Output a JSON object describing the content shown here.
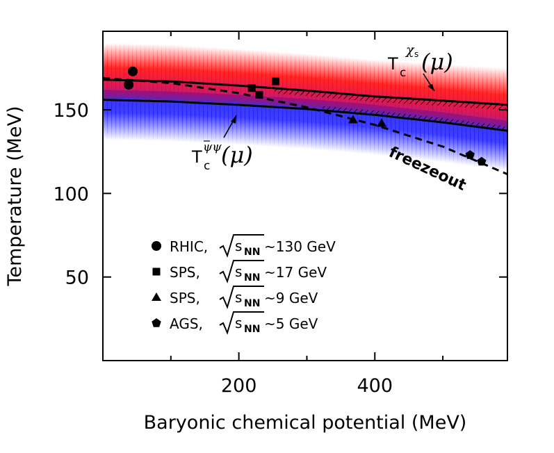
{
  "chart_data": {
    "type": "scatter",
    "xlabel": "Baryonic chemical potential (MeV)",
    "ylabel": "Temperature (MeV)",
    "xlim": [
      0,
      595
    ],
    "ylim": [
      0,
      197
    ],
    "x_ticks": [
      200,
      400
    ],
    "x_tick_labels": [
      "200",
      "400"
    ],
    "x_minor_ticks": [
      100,
      300,
      500
    ],
    "y_ticks": [
      50,
      100,
      150
    ],
    "y_tick_labels": [
      "50",
      "100",
      "150"
    ],
    "grid": false,
    "legend_position": "lower-left inside",
    "series": [
      {
        "name": "RHIC",
        "energy": "~130 GeV",
        "marker": "circle",
        "points": [
          [
            38,
            165
          ],
          [
            44,
            173
          ]
        ]
      },
      {
        "name": "SPS",
        "energy": "~17 GeV",
        "marker": "square",
        "points": [
          [
            219,
            163
          ],
          [
            230,
            159
          ],
          [
            254,
            167
          ]
        ]
      },
      {
        "name": "SPS",
        "energy": "~9 GeV",
        "marker": "triangle",
        "points": [
          [
            368,
            144
          ],
          [
            410,
            142
          ]
        ]
      },
      {
        "name": "AGS",
        "energy": "~5 GeV",
        "marker": "pentagon",
        "points": [
          [
            540,
            123
          ],
          [
            557,
            119
          ]
        ]
      }
    ],
    "curves": {
      "tc_chi": {
        "label": "T_c^χs(μ)",
        "style": "solid",
        "x": [
          0,
          100,
          200,
          300,
          400,
          500,
          595
        ],
        "y": [
          168.0,
          167.0,
          164.5,
          161.5,
          158.0,
          155.5,
          153.0
        ]
      },
      "tc_psibar": {
        "label": "T_c^ψ̄ψ(μ)",
        "style": "solid",
        "x": [
          0,
          100,
          200,
          300,
          400,
          500,
          595
        ],
        "y": [
          156.0,
          155.0,
          153.0,
          150.5,
          147.0,
          142.5,
          137.5
        ]
      },
      "freezeout": {
        "label": "freezeout",
        "style": "dashed",
        "x": [
          0,
          100,
          200,
          300,
          400,
          500,
          595
        ],
        "y": [
          169.0,
          166.0,
          160.0,
          151.5,
          141.0,
          128.0,
          111.5
        ]
      }
    },
    "bands": {
      "red": {
        "color": "#ff0000",
        "center_offset": 0,
        "spread": 22
      },
      "blue": {
        "color": "#0000ff",
        "center_offset": 0,
        "spread": 24
      }
    },
    "hatched": {
      "upper_from_x": 250,
      "lower_from_x": 320
    }
  },
  "legend": {
    "rows": [
      {
        "name": "RHIC,",
        "energy": "~130 GeV"
      },
      {
        "name": "SPS,",
        "energy": "~17 GeV"
      },
      {
        "name": "SPS,",
        "energy": "~9 GeV"
      },
      {
        "name": "AGS,",
        "energy": "~5 GeV"
      }
    ],
    "sqrt_label": "s",
    "sqrt_sub": "NN"
  },
  "annotations": {
    "tc_chi_T": "T",
    "tc_chi_sub": "c",
    "tc_chi_sup": "χ",
    "tc_chi_supsub": "s",
    "tc_chi_arg": "(μ)",
    "tc_psi_T": "T",
    "tc_psi_sub": "c",
    "tc_psi_sup": "ψψ",
    "tc_psi_arg": "(μ)",
    "freezeout": "freezeout"
  }
}
